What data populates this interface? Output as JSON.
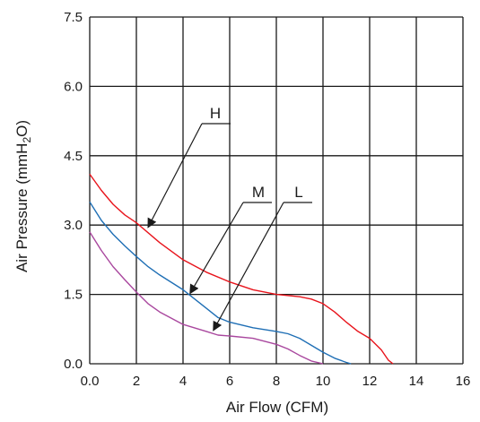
{
  "chart_data": {
    "type": "line",
    "title": "",
    "xlabel": "Air Flow (CFM)",
    "ylabel_main": "Air Pressure (mmH",
    "ylabel_sub": "2",
    "ylabel_end": "O)",
    "xlim": [
      0,
      16
    ],
    "ylim": [
      0,
      7.5
    ],
    "x_ticks": [
      "0.0",
      "2",
      "4",
      "6",
      "8",
      "10",
      "12",
      "14",
      "16"
    ],
    "y_ticks": [
      "0.0",
      "1.5",
      "3.0",
      "4.5",
      "6.0",
      "7.5"
    ],
    "grid": true,
    "series": [
      {
        "name": "H",
        "color": "#e8141c",
        "x": [
          0,
          0.5,
          1,
          1.5,
          2,
          3,
          4,
          5,
          6,
          7,
          8,
          9,
          9.5,
          10,
          10.5,
          11,
          11.5,
          12,
          12.5,
          12.8,
          13
        ],
        "y": [
          4.1,
          3.75,
          3.45,
          3.22,
          3.05,
          2.62,
          2.25,
          1.98,
          1.77,
          1.6,
          1.5,
          1.45,
          1.4,
          1.3,
          1.12,
          0.9,
          0.7,
          0.55,
          0.3,
          0.08,
          0
        ]
      },
      {
        "name": "M",
        "color": "#1f6fb5",
        "x": [
          0,
          0.5,
          1,
          1.5,
          2,
          2.5,
          3,
          4,
          5,
          5.5,
          6,
          7,
          8,
          8.5,
          9,
          9.5,
          10,
          10.5,
          11,
          11.2
        ],
        "y": [
          3.5,
          3.1,
          2.8,
          2.55,
          2.32,
          2.1,
          1.92,
          1.6,
          1.2,
          1.0,
          0.9,
          0.78,
          0.7,
          0.65,
          0.55,
          0.4,
          0.25,
          0.12,
          0.03,
          0
        ]
      },
      {
        "name": "L",
        "color": "#a9479e",
        "x": [
          0,
          0.5,
          1,
          1.5,
          2,
          2.5,
          3,
          4,
          5,
          5.5,
          6,
          7,
          8,
          8.5,
          9,
          9.5,
          10
        ],
        "y": [
          2.85,
          2.45,
          2.1,
          1.82,
          1.55,
          1.3,
          1.12,
          0.85,
          0.7,
          0.62,
          0.6,
          0.55,
          0.42,
          0.32,
          0.18,
          0.06,
          0
        ]
      }
    ],
    "annotations": [
      {
        "label": "H",
        "series": "H",
        "point": [
          2.5,
          2.95
        ]
      },
      {
        "label": "M",
        "series": "M",
        "point": [
          4.3,
          1.52
        ]
      },
      {
        "label": "L",
        "series": "L",
        "point": [
          5.3,
          0.72
        ]
      }
    ]
  }
}
